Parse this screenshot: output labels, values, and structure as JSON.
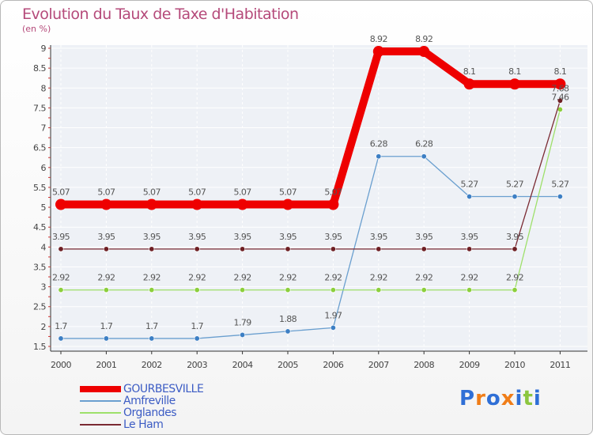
{
  "header": {
    "title": "Evolution du Taux de Taxe d'Habitation",
    "subtitle": "(en %)"
  },
  "brand": {
    "letters": [
      {
        "ch": "P",
        "color": "#2f6fd6"
      },
      {
        "ch": "r",
        "color": "#f07d18"
      },
      {
        "ch": "o",
        "color": "#2f6fd6"
      },
      {
        "ch": "x",
        "color": "#f07d18"
      },
      {
        "ch": "i",
        "color": "#2f6fd6"
      },
      {
        "ch": "t",
        "color": "#8cc63f"
      },
      {
        "ch": "i",
        "color": "#2f6fd6"
      }
    ]
  },
  "chart_data": {
    "type": "line",
    "title": "Evolution du Taux de Taxe d'Habitation",
    "ylabel": "(en %)",
    "xlabel": "",
    "x": [
      "2000",
      "2001",
      "2002",
      "2003",
      "2004",
      "2005",
      "2006",
      "2007",
      "2008",
      "2009",
      "2010",
      "2011"
    ],
    "ylim": [
      1.5,
      9
    ],
    "yticks": [
      "1.5",
      "2",
      "2.5",
      "3",
      "3.5",
      "4",
      "4.5",
      "5",
      "5.5",
      "6",
      "6.5",
      "7",
      "7.5",
      "8",
      "8.5",
      "9"
    ],
    "grid": "horizontal",
    "legend": "bottom-left",
    "series": [
      {
        "name": "GOURBESVILLE",
        "color": "#ee0000",
        "values": [
          5.07,
          5.07,
          5.07,
          5.07,
          5.07,
          5.07,
          5.07,
          8.92,
          8.92,
          8.1,
          8.1,
          8.1
        ],
        "labels": [
          "5.07",
          "5.07",
          "5.07",
          "5.07",
          "5.07",
          "5.07",
          "5.07",
          "8.92",
          "8.92",
          "8.1",
          "8.1",
          "8.1"
        ]
      },
      {
        "name": "Amfreville",
        "color": "#6a9fcf",
        "marker": "#3d7fc4",
        "values": [
          1.7,
          1.7,
          1.7,
          1.7,
          1.79,
          1.88,
          1.97,
          6.28,
          6.28,
          5.27,
          5.27,
          5.27
        ],
        "labels": [
          "1.7",
          "1.7",
          "1.7",
          "1.7",
          "1.79",
          "1.88",
          "1.97",
          "6.28",
          "6.28",
          "5.27",
          "5.27",
          "5.27"
        ]
      },
      {
        "name": "Orglandes",
        "color": "#9ee06a",
        "marker": "#8ccf3c",
        "values": [
          2.92,
          2.92,
          2.92,
          2.92,
          2.92,
          2.92,
          2.92,
          2.92,
          2.92,
          2.92,
          2.92,
          7.46
        ],
        "labels": [
          "2.92",
          "2.92",
          "2.92",
          "2.92",
          "2.92",
          "2.92",
          "2.92",
          "2.92",
          "2.92",
          "2.92",
          "2.92",
          "7.46"
        ]
      },
      {
        "name": "Le Ham",
        "color": "#7a2a33",
        "marker": "#6e1f24",
        "values": [
          3.95,
          3.95,
          3.95,
          3.95,
          3.95,
          3.95,
          3.95,
          3.95,
          3.95,
          3.95,
          3.95,
          7.68
        ],
        "labels": [
          "3.95",
          "3.95",
          "3.95",
          "3.95",
          "3.95",
          "3.95",
          "3.95",
          "3.95",
          "3.95",
          "3.95",
          "3.95",
          "7.68"
        ]
      }
    ]
  }
}
